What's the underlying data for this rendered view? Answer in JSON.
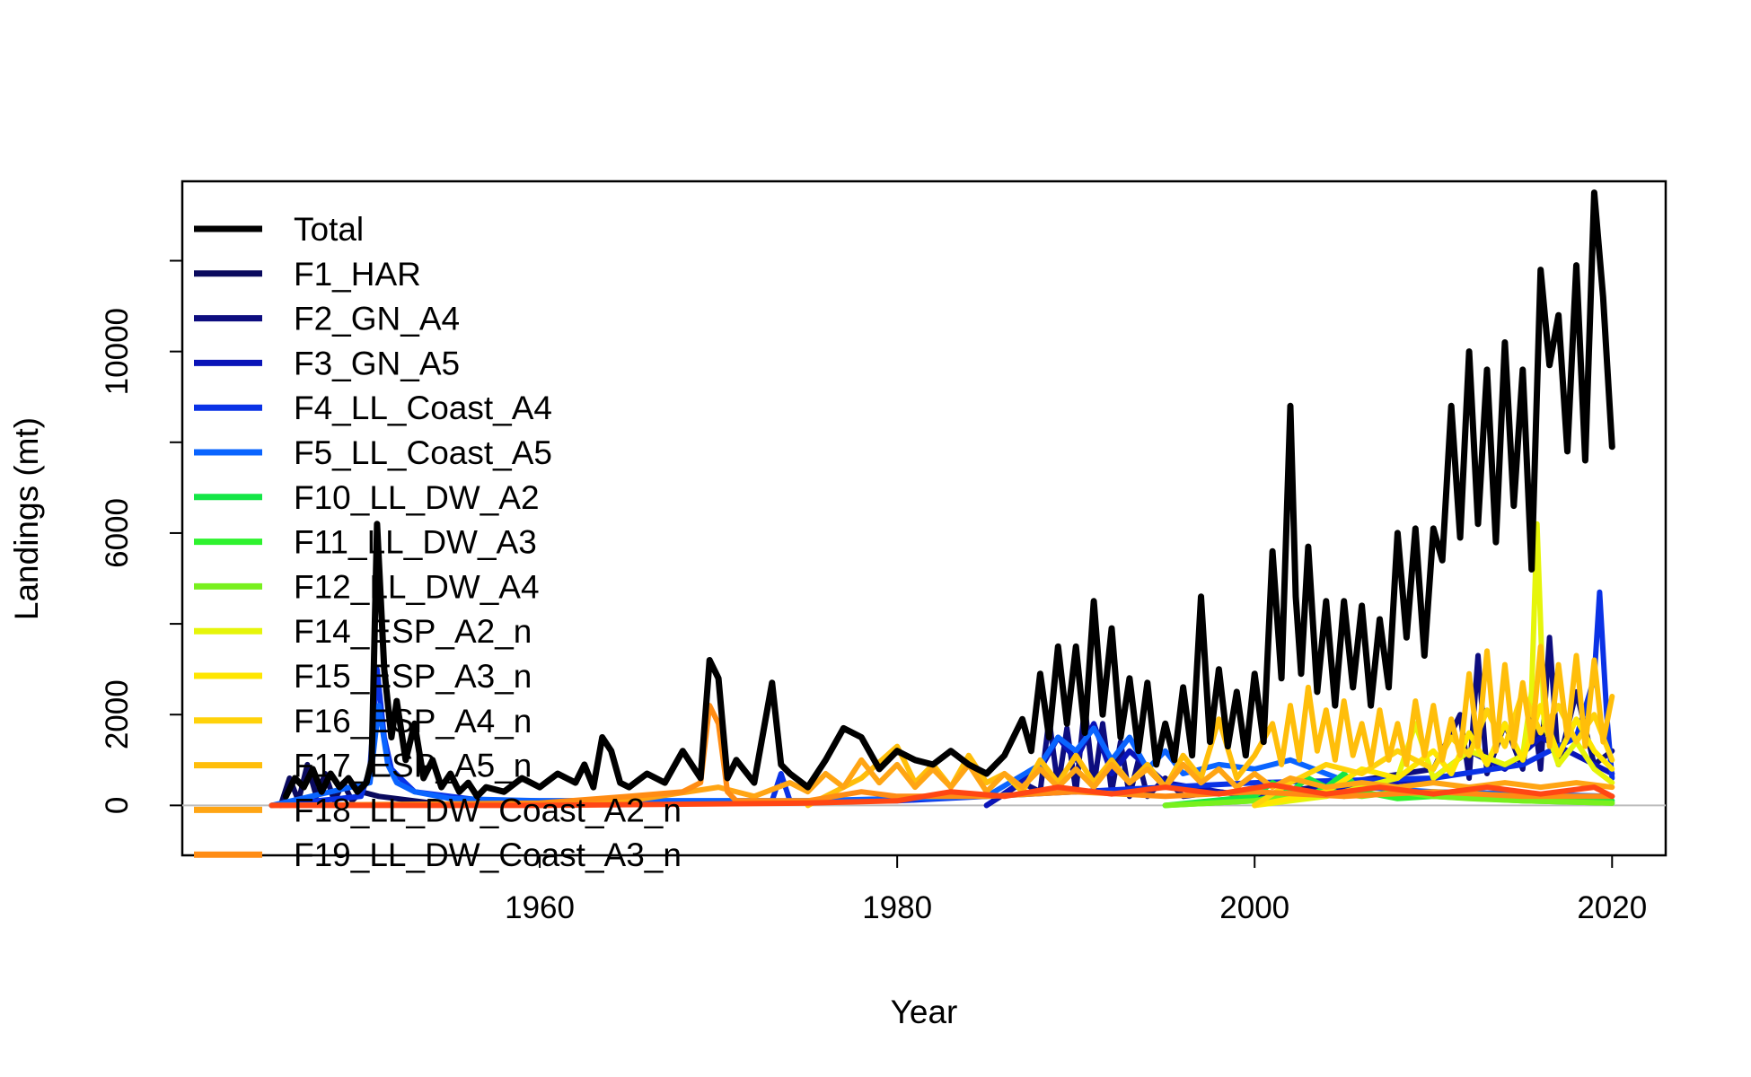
{
  "chart_data": {
    "type": "line",
    "title": "",
    "xlabel": "Year",
    "ylabel": "Landings (mt)",
    "xlim": [
      1940,
      2023
    ],
    "ylim": [
      -1100,
      13750
    ],
    "x_ticks": [
      1960,
      1980,
      2000,
      2020
    ],
    "y_ticks": [
      0,
      2000,
      6000,
      10000
    ],
    "y_minor_ticks": [
      4000,
      8000,
      12000
    ],
    "x_tick_labels": [
      "1960",
      "1980",
      "2000",
      "2020"
    ],
    "y_tick_labels": [
      "0",
      "2000",
      "6000",
      "10000"
    ],
    "zero_line": true,
    "grid": false,
    "legend_position": "top-left",
    "legend": [
      {
        "label": "Total",
        "color": "#000000"
      },
      {
        "label": "F1_HAR",
        "color": "#0a0a5e"
      },
      {
        "label": "F2_GN_A4",
        "color": "#0d0d7f"
      },
      {
        "label": "F3_GN_A5",
        "color": "#0a14b8"
      },
      {
        "label": "F4_LL_Coast_A4",
        "color": "#0a32e6"
      },
      {
        "label": "F5_LL_Coast_A5",
        "color": "#0a64ff"
      },
      {
        "label": "F10_LL_DW_A2",
        "color": "#14e646"
      },
      {
        "label": "F11_LL_DW_A3",
        "color": "#2ef22e"
      },
      {
        "label": "F12_LL_DW_A4",
        "color": "#78f01e"
      },
      {
        "label": "F14_ESP_A2_n",
        "color": "#e6f50a"
      },
      {
        "label": "F15_ESP_A3_n",
        "color": "#ffe600"
      },
      {
        "label": "F16_ESP_A4_n",
        "color": "#ffd20a"
      },
      {
        "label": "F17_ESP_A5_n",
        "color": "#ffbe0a"
      },
      {
        "label": "F18_LL_DW_Coast_A2_n",
        "color": "#ffa514"
      },
      {
        "label": "F19_LL_DW_Coast_A3_n",
        "color": "#ff8c14"
      }
    ],
    "series": [
      {
        "name": "Total",
        "color": "#000000",
        "x": [
          1945.8,
          1946.3,
          1946.8,
          1947.3,
          1947.8,
          1948.3,
          1948.8,
          1949.3,
          1949.8,
          1950.3,
          1950.6,
          1950.9,
          1951.3,
          1951.7,
          1952.0,
          1952.5,
          1953.0,
          1953.5,
          1954.0,
          1954.5,
          1955.0,
          1955.5,
          1956.0,
          1956.5,
          1957.0,
          1958.0,
          1959.0,
          1960.0,
          1961.0,
          1962.0,
          1962.5,
          1963.0,
          1963.5,
          1964.0,
          1964.5,
          1965.0,
          1966.0,
          1967.0,
          1968.0,
          1968.5,
          1969.0,
          1969.5,
          1970.0,
          1970.5,
          1971.0,
          1972.0,
          1973.0,
          1973.5,
          1974.0,
          1975.0,
          1976.0,
          1977.0,
          1978.0,
          1979.0,
          1980.0,
          1981.0,
          1982.0,
          1983.0,
          1984.0,
          1985.0,
          1986.0,
          1987.0,
          1987.5,
          1988.0,
          1988.5,
          1989.0,
          1989.5,
          1990.0,
          1990.5,
          1991.0,
          1991.5,
          1992.0,
          1992.5,
          1993.0,
          1993.5,
          1994.0,
          1994.5,
          1995.0,
          1995.5,
          1996.0,
          1996.5,
          1997.0,
          1997.5,
          1998.0,
          1998.5,
          1999.0,
          1999.5,
          2000.0,
          2000.5,
          2001.0,
          2001.5,
          2002.0,
          2002.3,
          2002.6,
          2003.0,
          2003.5,
          2004.0,
          2004.5,
          2005.0,
          2005.5,
          2006.0,
          2006.5,
          2007.0,
          2007.5,
          2008.0,
          2008.5,
          2009.0,
          2009.5,
          2010.0,
          2010.5,
          2011.0,
          2011.5,
          2012.0,
          2012.5,
          2013.0,
          2013.5,
          2014.0,
          2014.5,
          2015.0,
          2015.5,
          2016.0,
          2016.5,
          2017.0,
          2017.5,
          2018.0,
          2018.5,
          2019.0,
          2019.5,
          2020.0
        ],
        "y": [
          200,
          600,
          400,
          800,
          300,
          700,
          400,
          600,
          300,
          500,
          1000,
          6200,
          3000,
          1500,
          2300,
          1000,
          1800,
          600,
          1000,
          400,
          700,
          300,
          500,
          200,
          400,
          300,
          600,
          400,
          700,
          500,
          900,
          400,
          1500,
          1200,
          500,
          400,
          700,
          500,
          1200,
          900,
          600,
          3200,
          2800,
          600,
          1000,
          500,
          2700,
          900,
          700,
          400,
          1000,
          1700,
          1500,
          800,
          1200,
          1000,
          900,
          1200,
          900,
          700,
          1100,
          1900,
          1200,
          2900,
          1500,
          3500,
          1800,
          3500,
          1600,
          4500,
          2000,
          3900,
          1500,
          2800,
          1200,
          2700,
          900,
          1800,
          1000,
          2600,
          1100,
          4600,
          1400,
          3000,
          1300,
          2500,
          1100,
          2900,
          1400,
          5600,
          2800,
          8800,
          4600,
          2900,
          5700,
          2500,
          4500,
          2200,
          4500,
          2600,
          4400,
          2200,
          4100,
          2600,
          6000,
          3700,
          6100,
          3300,
          6100,
          5400,
          8800,
          5900,
          10000,
          6200,
          9600,
          5800,
          10200,
          6600,
          9600,
          5200,
          11800,
          9700,
          10800,
          7800,
          11900,
          7600,
          13500,
          11200,
          7900
        ]
      },
      {
        "name": "F1_HAR",
        "color": "#0a0a5e",
        "x": [
          1945.5,
          1946.0,
          1946.5,
          1947.0,
          1947.5,
          1948.0,
          1948.5,
          1949.0,
          1949.5,
          1950.0,
          1951.0,
          1952.0,
          1953.0,
          1955.0
        ],
        "y": [
          0,
          600,
          100,
          900,
          200,
          700,
          100,
          500,
          100,
          300,
          200,
          150,
          100,
          0
        ]
      },
      {
        "name": "F2_GN_A4",
        "color": "#0d0d7f",
        "x": [
          1985,
          1987,
          1988,
          1988.5,
          1989,
          1989.5,
          1990,
          1990.5,
          1991,
          1991.5,
          1992,
          1992.5,
          1993,
          1993.5,
          1994,
          1995,
          1996,
          1998,
          2000,
          2010,
          2011.5,
          2012,
          2012.5,
          2013,
          2014,
          2015,
          2015.5,
          2016,
          2016.5,
          2017,
          2018,
          2019,
          2020
        ],
        "y": [
          0,
          500,
          300,
          1900,
          400,
          1700,
          300,
          2200,
          400,
          1800,
          300,
          1400,
          200,
          1000,
          200,
          600,
          200,
          300,
          200,
          800,
          2000,
          600,
          3300,
          700,
          1800,
          800,
          2400,
          800,
          3700,
          900,
          2500,
          900,
          1200
        ]
      },
      {
        "name": "F3_GN_A5",
        "color": "#0a14b8",
        "x": [
          1985,
          1988,
          1989,
          1990,
          1991,
          1992,
          1993,
          1995,
          1998,
          2000,
          2010,
          2012,
          2014,
          2016,
          2018,
          2020
        ],
        "y": [
          0,
          800,
          1500,
          1000,
          1800,
          700,
          1200,
          500,
          300,
          200,
          600,
          1200,
          800,
          1500,
          1100,
          700
        ]
      },
      {
        "name": "F4_LL_Coast_A4",
        "color": "#0a32e6",
        "x": [
          1945,
          1950,
          1950.5,
          1950.9,
          1951.3,
          1951.7,
          1952.2,
          1953,
          1955,
          1957,
          1960,
          1970,
          1973,
          1973.5,
          1974,
          1980,
          1990,
          2000,
          2010,
          2015,
          2018,
          2019,
          2019.3,
          2019.7,
          2020
        ],
        "y": [
          0,
          200,
          800,
          3000,
          1500,
          800,
          600,
          300,
          200,
          100,
          100,
          100,
          100,
          700,
          100,
          100,
          300,
          500,
          600,
          900,
          1500,
          2800,
          4700,
          2000,
          600
        ]
      },
      {
        "name": "F5_LL_Coast_A5",
        "color": "#0a64ff",
        "x": [
          1945,
          1950.5,
          1951,
          1951.5,
          1952,
          1953,
          1955,
          1960,
          1975,
          1985,
          1988,
          1989,
          1990,
          1991,
          1992,
          1993,
          1994,
          1995,
          1996,
          1998,
          2000,
          2002,
          2004,
          2006,
          2010,
          2020
        ],
        "y": [
          0,
          500,
          2200,
          900,
          500,
          300,
          150,
          100,
          100,
          200,
          900,
          1500,
          1200,
          1700,
          1000,
          1500,
          800,
          1200,
          700,
          900,
          800,
          1000,
          700,
          400,
          300,
          200
        ]
      },
      {
        "name": "F10_LL_DW_A2",
        "color": "#14e646",
        "x": [
          1995,
          2000,
          2001,
          2002,
          2003,
          2004,
          2005,
          2006,
          2007,
          2008,
          2010,
          2015,
          2020
        ],
        "y": [
          0,
          200,
          500,
          300,
          600,
          400,
          700,
          300,
          500,
          200,
          300,
          200,
          100
        ]
      },
      {
        "name": "F11_LL_DW_A3",
        "color": "#2ef22e",
        "x": [
          1995,
          2000,
          2002,
          2003,
          2004,
          2005,
          2006,
          2008,
          2010,
          2015,
          2020
        ],
        "y": [
          0,
          100,
          300,
          200,
          400,
          200,
          300,
          150,
          200,
          100,
          50
        ]
      },
      {
        "name": "F12_LL_DW_A4",
        "color": "#78f01e",
        "x": [
          1995,
          2000,
          2002,
          2004,
          2006,
          2008,
          2010,
          2012,
          2015,
          2020
        ],
        "y": [
          0,
          100,
          200,
          300,
          200,
          300,
          200,
          150,
          100,
          50
        ]
      },
      {
        "name": "F14_ESP_A2_n",
        "color": "#e6f50a",
        "x": [
          2000,
          2004,
          2008,
          2009,
          2010,
          2012,
          2014,
          2015,
          2015.5,
          2015.8,
          2016.2,
          2017,
          2018,
          2019,
          2020
        ],
        "y": [
          0,
          200,
          600,
          1800,
          600,
          1200,
          900,
          1100,
          2500,
          6200,
          1800,
          900,
          1400,
          800,
          500
        ]
      },
      {
        "name": "F15_ESP_A3_n",
        "color": "#ffe600",
        "x": [
          2000,
          2004,
          2006,
          2008,
          2010,
          2011,
          2012,
          2013,
          2014,
          2015,
          2016,
          2017,
          2018,
          2019,
          2020
        ],
        "y": [
          0,
          300,
          800,
          600,
          1200,
          700,
          1600,
          900,
          1800,
          1000,
          2200,
          1100,
          1900,
          1200,
          800
        ]
      },
      {
        "name": "F16_ESP_A4_n",
        "color": "#ffd20a",
        "x": [
          2000,
          2002,
          2004,
          2006,
          2008,
          2010,
          2011,
          2012,
          2013,
          2014,
          2015,
          2016,
          2017,
          2018,
          2019,
          2020
        ],
        "y": [
          0,
          500,
          900,
          700,
          1200,
          800,
          1500,
          1100,
          2100,
          1300,
          2500,
          1600,
          2200,
          1400,
          2000,
          1000
        ]
      },
      {
        "name": "F17_ESP_A5_n",
        "color": "#ffbe0a",
        "x": [
          1975,
          1978,
          1980,
          1981,
          1982,
          1983,
          1984,
          1985,
          1986,
          1987,
          1988,
          1989,
          1990,
          1991,
          1992,
          1993,
          1994,
          1995,
          1996,
          1997,
          1998,
          1999,
          2000,
          2001,
          2001.5,
          2002,
          2002.5,
          2003,
          2003.5,
          2004,
          2004.5,
          2005,
          2005.5,
          2006,
          2006.5,
          2007,
          2007.5,
          2008,
          2008.5,
          2009,
          2009.5,
          2010,
          2010.5,
          2011,
          2011.5,
          2012,
          2012.5,
          2013,
          2013.5,
          2014,
          2014.5,
          2015,
          2015.5,
          2016,
          2016.5,
          2017,
          2017.5,
          2018,
          2018.5,
          2019,
          2019.5,
          2020
        ],
        "y": [
          0,
          600,
          1300,
          500,
          900,
          400,
          1100,
          500,
          700,
          300,
          1000,
          500,
          1100,
          500,
          1000,
          500,
          900,
          400,
          1100,
          600,
          1900,
          600,
          1100,
          1800,
          900,
          2200,
          1000,
          2600,
          1200,
          2100,
          1000,
          2300,
          1100,
          1800,
          900,
          2100,
          1000,
          1800,
          900,
          2300,
          1100,
          2200,
          1000,
          1900,
          1100,
          2900,
          1300,
          3400,
          1200,
          3100,
          1300,
          2700,
          1400,
          3500,
          1300,
          3100,
          1500,
          3300,
          1300,
          3200,
          1400,
          2400
        ]
      },
      {
        "name": "F18_LL_DW_Coast_A2_n",
        "color": "#ffa514",
        "x": [
          1960,
          1965,
          1970,
          1972,
          1974,
          1975,
          1976,
          1977,
          1978,
          1979,
          1980,
          1981,
          1982,
          1983,
          1984,
          1985,
          1986,
          1987,
          1988,
          1989,
          1990,
          1991,
          1992,
          1993,
          1994,
          1995,
          1996,
          1997,
          1998,
          1999,
          2000,
          2001,
          2002,
          2004,
          2006,
          2008,
          2010,
          2012,
          2014,
          2016,
          2018,
          2020
        ],
        "y": [
          0,
          100,
          400,
          200,
          500,
          300,
          700,
          400,
          1000,
          500,
          900,
          400,
          800,
          400,
          900,
          300,
          700,
          400,
          800,
          400,
          800,
          400,
          900,
          500,
          800,
          400,
          900,
          500,
          800,
          400,
          700,
          400,
          600,
          400,
          500,
          400,
          500,
          400,
          500,
          400,
          500,
          400
        ]
      },
      {
        "name": "F19_LL_DW_Coast_A3_n",
        "color": "#ff8c14",
        "x": [
          1945,
          1960,
          1965,
          1968,
          1969,
          1969.5,
          1970,
          1970.5,
          1971,
          1975,
          1978,
          1980,
          1985,
          1990,
          1995,
          2000,
          2005,
          2010,
          2015,
          2020
        ],
        "y": [
          0,
          50,
          200,
          300,
          500,
          2200,
          1800,
          300,
          100,
          100,
          300,
          200,
          200,
          300,
          200,
          300,
          200,
          300,
          200,
          200
        ]
      },
      {
        "name": "",
        "color": "#ff4614",
        "x": [
          1945,
          1960,
          1975,
          1980,
          1983,
          1986,
          1989,
          1992,
          1995,
          1998,
          2001,
          2004,
          2007,
          2010,
          2013,
          2016,
          2019,
          2020
        ],
        "y": [
          0,
          0,
          50,
          100,
          300,
          200,
          400,
          250,
          400,
          250,
          450,
          250,
          400,
          250,
          400,
          250,
          400,
          200
        ]
      }
    ]
  }
}
